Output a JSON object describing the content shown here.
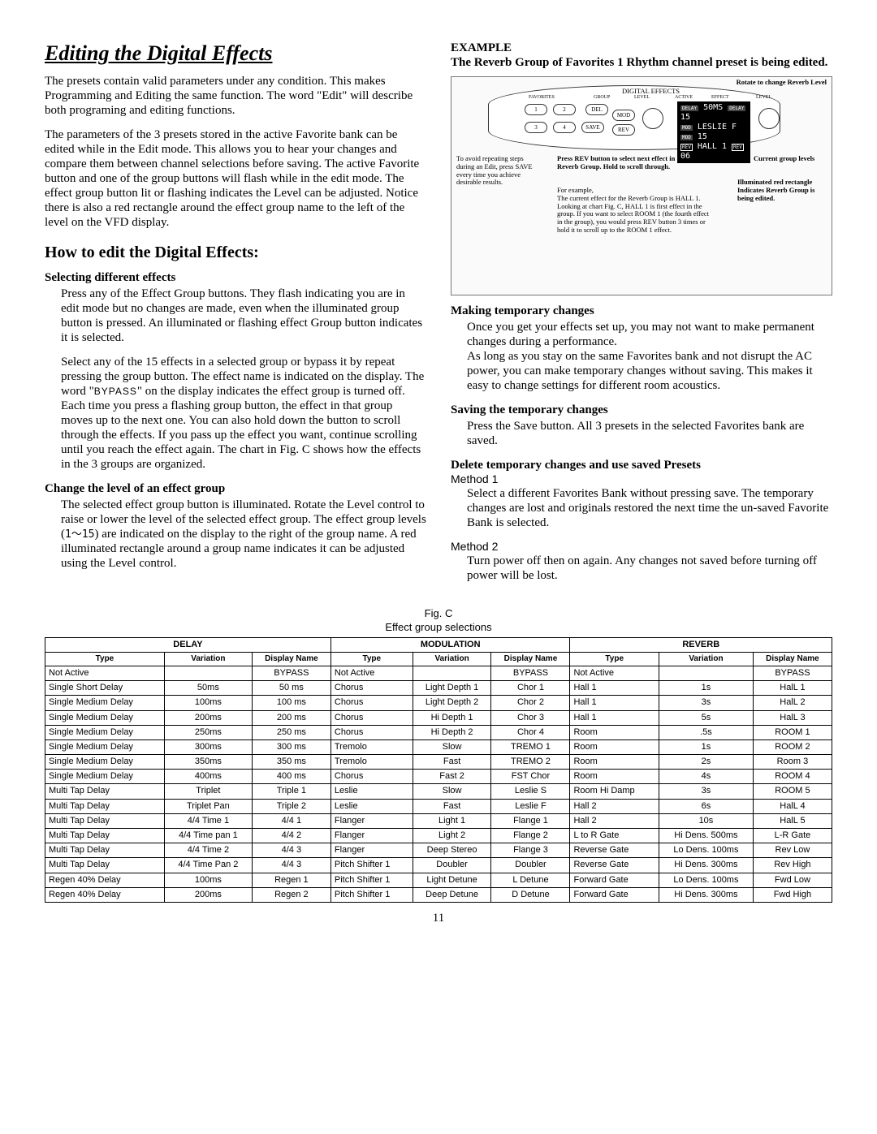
{
  "title": "Editing the Digital Effects",
  "intro_p1": "The presets contain valid parameters under any condition. This makes Programming and Editing the same function. The word \"Edit\" will describe both programing and editing functions.",
  "intro_p2": "The parameters of the 3 presets stored in the active Favorite bank can be edited while in the Edit mode. This allows you to hear your changes and compare them between channel selections before saving. The active Favorite button and one of the group buttons will flash while in the edit mode. The effect group button lit or flashing indicates the Level can be adjusted. Notice there is also a red rectangle around the effect group name to the left of the level on the VFD display.",
  "howto_title": "How to edit the Digital Effects:",
  "sel_head": "Selecting different effects",
  "sel_p1": "Press any of the Effect Group buttons. They flash indicating you are in edit mode but no changes are made, even when the illuminated group button is pressed. An illuminated or flashing effect Group button indicates it is selected.",
  "sel_p2_a": "Select any of the 15 effects in a selected group or bypass it by repeat pressing the group button. The effect name is indicated on the display. The word \"",
  "sel_p2_bypass": "BYPASS",
  "sel_p2_b": "\" on the display indicates the effect group is turned off. Each time you press a flashing group button, the effect in that group moves up to the next one. You can also hold down the button to scroll through the effects. If you pass up the effect you want, continue scrolling until you reach the effect again. The chart in Fig. C shows how the effects in the 3 groups are organized.",
  "lvl_head": "Change the level of an effect group",
  "lvl_p_a": "The selected effect group button is illuminated.  Rotate the Level control to raise or lower the level of the selected effect group. The effect group levels (",
  "lvl_range": "1～15",
  "lvl_p_b": ") are indicated on the display to the right of the group name. A red illuminated rectangle around a group name indicates it can be adjusted using the Level control.",
  "example_head": "EXAMPLE",
  "example_sub": "The Reverb Group of Favorites 1 Rhythm channel preset is being edited.",
  "diagram": {
    "lcd_lines": [
      "50MS",
      "LESLIE F",
      "HALL  1"
    ],
    "lcd_vals": [
      "15",
      "15",
      "06"
    ],
    "lcd_tags": [
      "DELAY",
      "MOD",
      "REV"
    ],
    "btn1": "1",
    "btn2": "2",
    "btn3": "3",
    "btn4": "4",
    "btn_save": "SAVE",
    "btn_del": "DEL",
    "btn_mod": "MOD",
    "btn_rev": "REV",
    "annot_rotate": "Rotate to change Reverb Level",
    "annot_tip": "To avoid repeating steps during an Edit, press SAVE every time you achieve desirable results.",
    "annot_press": "Press REV button to select next effect in Reverb Group. Hold to scroll through.",
    "annot_example": "For example, \nThe current effect for the Reverb Group is HALL 1.\nLooking at chart Fig. C, HALL 1 is first effect in the group. If you want to select ROOM 1 (the fourth effect in the group), you would press REV button 3 times or hold it to scroll up to the ROOM 1 effect.",
    "annot_current": "Current group levels",
    "annot_red": "Illuminated red rectangle Indicates Reverb Group is being edited.",
    "label_digital": "DIGITAL EFFECTS",
    "label_fav": "FAVORITES",
    "label_group": "GROUP",
    "label_level": "LEVEL",
    "label_active": "ACTIVE",
    "label_effect": "EFFECT"
  },
  "temp_head": "Making temporary changes",
  "temp_p": "Once you get your effects set up, you may not want to make permanent changes during a performance.\nAs long as you stay on the same Favorites bank and not disrupt the AC power, you can make temporary changes without saving. This makes it easy to change settings for different room acoustics.",
  "save_head": "Saving the temporary changes",
  "save_p": "Press the Save button. All 3 presets in the selected Favorites bank are saved.",
  "del_head": "Delete temporary changes and use saved Presets",
  "m1": "Method 1",
  "m1_p": "Select a different Favorites Bank without pressing save. The temporary changes are lost and originals restored the next time the un-saved Favorite Bank is selected.",
  "m2": "Method 2",
  "m2_p": "Turn power off then on again. Any changes not saved before turning off power will be lost.",
  "fig_label": "Fig. C",
  "fig_title": "Effect group selections",
  "table": {
    "groups": [
      "DELAY",
      "MODULATION",
      "REVERB"
    ],
    "subheads": [
      "Type",
      "Variation",
      "Display Name"
    ],
    "rows": [
      [
        [
          "Not Active",
          "",
          "BYPASS"
        ],
        [
          "Not Active",
          "",
          "BYPASS"
        ],
        [
          "Not Active",
          "",
          "BYPASS"
        ]
      ],
      [
        [
          "Single Short Delay",
          "50ms",
          "50 ms"
        ],
        [
          "Chorus",
          "Light Depth 1",
          "Chor 1"
        ],
        [
          "Hall 1",
          "1s",
          "HalL 1"
        ]
      ],
      [
        [
          "Single Medium Delay",
          "100ms",
          "100 ms"
        ],
        [
          "Chorus",
          "Light Depth 2",
          "Chor 2"
        ],
        [
          "Hall 1",
          "3s",
          "HalL 2"
        ]
      ],
      [
        [
          "Single Medium Delay",
          "200ms",
          "200 ms"
        ],
        [
          "Chorus",
          "Hi Depth 1",
          "Chor 3"
        ],
        [
          "Hall 1",
          "5s",
          "HalL 3"
        ]
      ],
      [
        [
          "Single Medium Delay",
          "250ms",
          "250 ms"
        ],
        [
          "Chorus",
          "Hi Depth 2",
          "Chor 4"
        ],
        [
          "Room",
          ".5s",
          "ROOM 1"
        ]
      ],
      [
        [
          "Single Medium Delay",
          "300ms",
          "300 ms"
        ],
        [
          "Tremolo",
          "Slow",
          "TREMO 1"
        ],
        [
          "Room",
          "1s",
          "ROOM 2"
        ]
      ],
      [
        [
          "Single Medium Delay",
          "350ms",
          "350 ms"
        ],
        [
          "Tremolo",
          "Fast",
          "TREMO 2"
        ],
        [
          "Room",
          "2s",
          "Room 3"
        ]
      ],
      [
        [
          "Single Medium Delay",
          "400ms",
          "400 ms"
        ],
        [
          "Chorus",
          "Fast 2",
          "FST Chor"
        ],
        [
          "Room",
          "4s",
          "ROOM 4"
        ]
      ],
      [
        [
          "Multi Tap Delay",
          "Triplet",
          "Triple 1"
        ],
        [
          "Leslie",
          "Slow",
          "Leslie S"
        ],
        [
          "Room Hi Damp",
          "3s",
          "ROOM 5"
        ]
      ],
      [
        [
          "Multi Tap Delay",
          "Triplet Pan",
          "Triple 2"
        ],
        [
          "Leslie",
          "Fast",
          "Leslie F"
        ],
        [
          "Hall 2",
          "6s",
          "HalL 4"
        ]
      ],
      [
        [
          "Multi Tap Delay",
          "4/4 Time 1",
          "4/4 1"
        ],
        [
          "Flanger",
          "Light 1",
          "Flange 1"
        ],
        [
          "Hall 2",
          "10s",
          "HalL 5"
        ]
      ],
      [
        [
          "Multi Tap Delay",
          "4/4 Time pan 1",
          "4/4 2"
        ],
        [
          "Flanger",
          "Light 2",
          "Flange 2"
        ],
        [
          "L to R Gate",
          "Hi Dens. 500ms",
          "L-R Gate"
        ]
      ],
      [
        [
          "Multi Tap Delay",
          "4/4 Time 2",
          "4/4 3"
        ],
        [
          "Flanger",
          "Deep Stereo",
          "Flange 3"
        ],
        [
          "Reverse Gate",
          "Lo Dens. 100ms",
          "Rev Low"
        ]
      ],
      [
        [
          "Multi Tap Delay",
          "4/4 Time Pan 2",
          "4/4 3"
        ],
        [
          "Pitch Shifter 1",
          "Doubler",
          "Doubler"
        ],
        [
          "Reverse Gate",
          "Hi Dens. 300ms",
          "Rev High"
        ]
      ],
      [
        [
          "Regen 40% Delay",
          "100ms",
          "Regen 1"
        ],
        [
          "Pitch Shifter 1",
          "Light Detune",
          "L Detune"
        ],
        [
          "Forward Gate",
          "Lo Dens. 100ms",
          "Fwd Low"
        ]
      ],
      [
        [
          "Regen 40% Delay",
          "200ms",
          "Regen 2"
        ],
        [
          "Pitch Shifter 1",
          "Deep Detune",
          "D Detune"
        ],
        [
          "Forward Gate",
          "Hi Dens. 300ms",
          "Fwd High"
        ]
      ]
    ]
  },
  "page_number": "11"
}
